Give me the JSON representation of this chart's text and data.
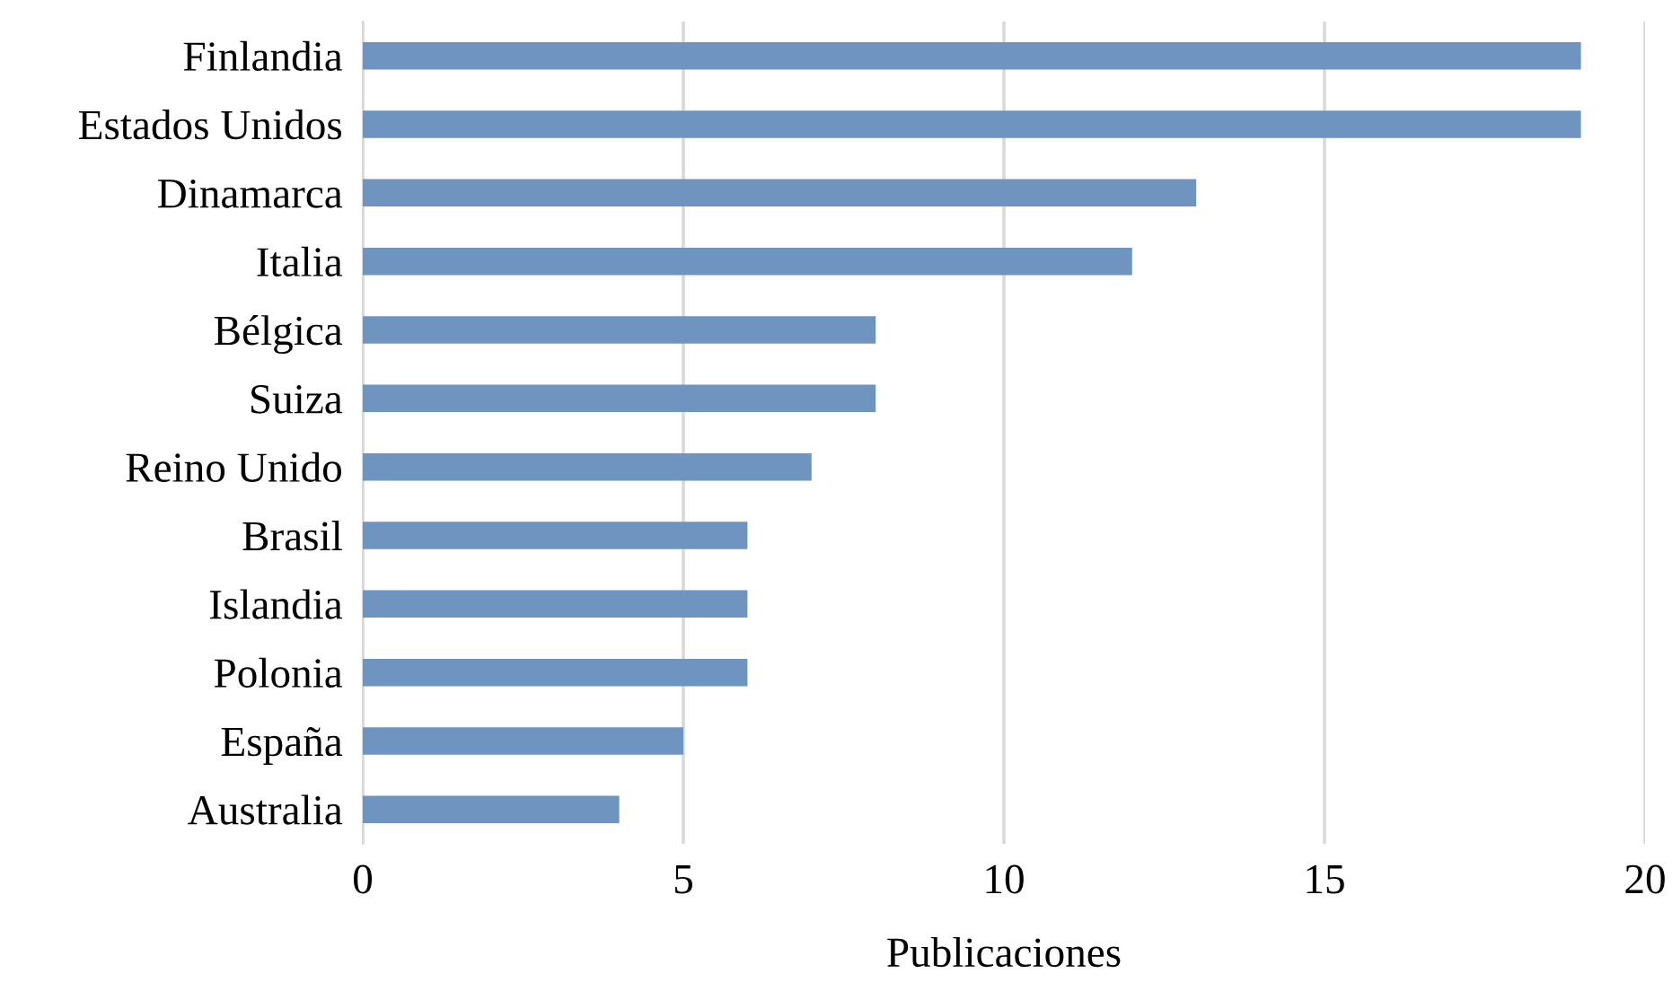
{
  "chart_data": {
    "type": "bar",
    "orientation": "horizontal",
    "xlabel": "Publicaciones",
    "categories": [
      "Finlandia",
      "Estados Unidos",
      "Dinamarca",
      "Italia",
      "Bélgica",
      "Suiza",
      "Reino Unido",
      "Brasil",
      "Islandia",
      "Polonia",
      "España",
      "Australia"
    ],
    "values": [
      19,
      19,
      13,
      12,
      8,
      8,
      7,
      6,
      6,
      6,
      5,
      4
    ],
    "color": "#7094c0",
    "xlim": [
      0,
      20
    ],
    "xticks": [
      0,
      5,
      10,
      15,
      20
    ],
    "grid": "x",
    "legend": false
  }
}
